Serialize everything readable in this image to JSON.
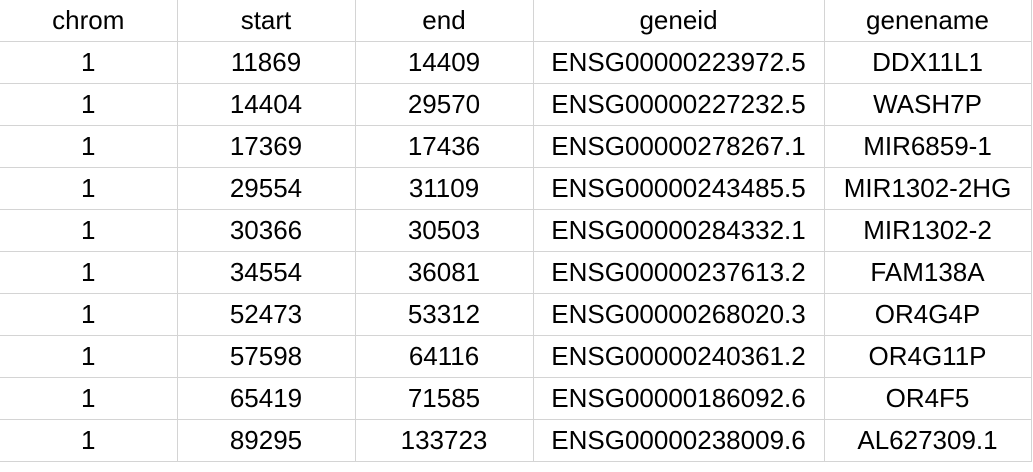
{
  "table": {
    "columns": [
      "chrom",
      "start",
      "end",
      "geneid",
      "genename"
    ],
    "rows": [
      [
        "1",
        "11869",
        "14409",
        "ENSG00000223972.5",
        "DDX11L1"
      ],
      [
        "1",
        "14404",
        "29570",
        "ENSG00000227232.5",
        "WASH7P"
      ],
      [
        "1",
        "17369",
        "17436",
        "ENSG00000278267.1",
        "MIR6859-1"
      ],
      [
        "1",
        "29554",
        "31109",
        "ENSG00000243485.5",
        "MIR1302-2HG"
      ],
      [
        "1",
        "30366",
        "30503",
        "ENSG00000284332.1",
        "MIR1302-2"
      ],
      [
        "1",
        "34554",
        "36081",
        "ENSG00000237613.2",
        "FAM138A"
      ],
      [
        "1",
        "52473",
        "53312",
        "ENSG00000268020.3",
        "OR4G4P"
      ],
      [
        "1",
        "57598",
        "64116",
        "ENSG00000240361.2",
        "OR4G11P"
      ],
      [
        "1",
        "65419",
        "71585",
        "ENSG00000186092.6",
        "OR4F5"
      ],
      [
        "1",
        "89295",
        "133723",
        "ENSG00000238009.6",
        "AL627309.1"
      ]
    ]
  }
}
